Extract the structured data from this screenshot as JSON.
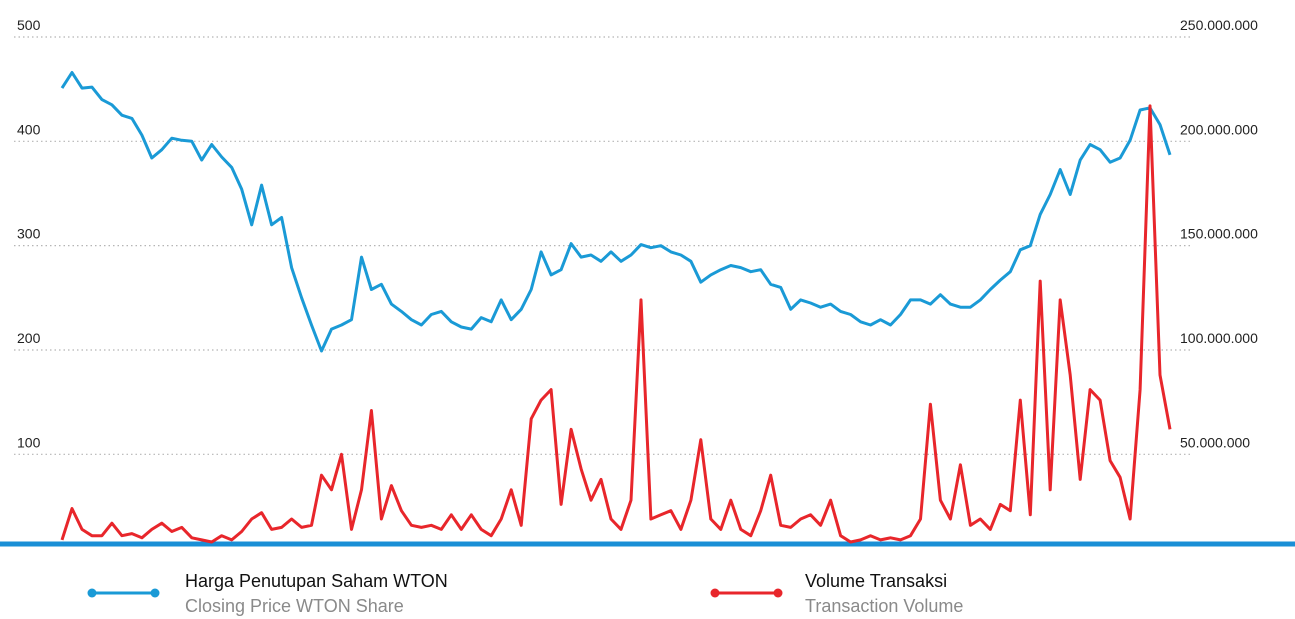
{
  "chart_data": {
    "type": "line",
    "grid": true,
    "ylim": [
      15,
      500
    ],
    "yticks": [
      100,
      200,
      300,
      400,
      500
    ],
    "y2lim": [
      7500000,
      250000000
    ],
    "y2ticks": [
      {
        "value": 50000000,
        "label": "50.000.000"
      },
      {
        "value": 100000000,
        "label": "100.000.000"
      },
      {
        "value": 150000000,
        "label": "150.000.000"
      },
      {
        "value": 200000000,
        "label": "200.000.000"
      },
      {
        "value": 250000000,
        "label": "250.000.000"
      }
    ],
    "series": [
      {
        "name": "Harga Penutupan Saham WTON",
        "name_en": "Closing Price WTON Share",
        "color": "#1a9ad6",
        "values": [
          451,
          466,
          451,
          452,
          440,
          435,
          425,
          422,
          406,
          384,
          392,
          403,
          401,
          400,
          382,
          397,
          385,
          375,
          354,
          320,
          358,
          320,
          327,
          279,
          250,
          224,
          199,
          220,
          224,
          229,
          289,
          258,
          263,
          244,
          237,
          229,
          224,
          234,
          237,
          227,
          222,
          220,
          231,
          227,
          248,
          229,
          239,
          258,
          294,
          272,
          277,
          302,
          289,
          291,
          285,
          294,
          285,
          291,
          301,
          298,
          300,
          294,
          291,
          285,
          265,
          272,
          277,
          281,
          279,
          275,
          277,
          263,
          260,
          239,
          248,
          245,
          241,
          244,
          237,
          234,
          227,
          224,
          229,
          224,
          234,
          248,
          248,
          244,
          253,
          244,
          241,
          241,
          248,
          258,
          267,
          275,
          296,
          300,
          330,
          349,
          373,
          349,
          382,
          397,
          392,
          380,
          384,
          401,
          430,
          432,
          416,
          387
        ]
      },
      {
        "name": "Volume Transaksi",
        "name_en": "Transaction Volume",
        "color": "#e8262b",
        "axis": "y2",
        "values": [
          9000000,
          24000000,
          14000000,
          11000000,
          11000000,
          17000000,
          11000000,
          12000000,
          10000000,
          14000000,
          17000000,
          13000000,
          15000000,
          10000000,
          9000000,
          8000000,
          11000000,
          9000000,
          13000000,
          19000000,
          22000000,
          14000000,
          15000000,
          19000000,
          15000000,
          16000000,
          40000000,
          33000000,
          50000000,
          14000000,
          33000000,
          71000000,
          19000000,
          35000000,
          23000000,
          16000000,
          15000000,
          16000000,
          14000000,
          21000000,
          14000000,
          21000000,
          14000000,
          11000000,
          19000000,
          33000000,
          16000000,
          67000000,
          76000000,
          81000000,
          26000000,
          62000000,
          43000000,
          28000000,
          38000000,
          19000000,
          14000000,
          28000000,
          124000000,
          19000000,
          21000000,
          23000000,
          14000000,
          28000000,
          57000000,
          19000000,
          14000000,
          28000000,
          14000000,
          11000000,
          23000000,
          40000000,
          16000000,
          15000000,
          19000000,
          21000000,
          16000000,
          28000000,
          11000000,
          8000000,
          9000000,
          11000000,
          9000000,
          10000000,
          9000000,
          11000000,
          19000000,
          74000000,
          28000000,
          19000000,
          45000000,
          16000000,
          19000000,
          14000000,
          26000000,
          23000000,
          76000000,
          21000000,
          133000000,
          33000000,
          124000000,
          88000000,
          38000000,
          81000000,
          76000000,
          47000000,
          39000000,
          19000000,
          81000000,
          217000000,
          88000000,
          62000000
        ]
      }
    ]
  }
}
